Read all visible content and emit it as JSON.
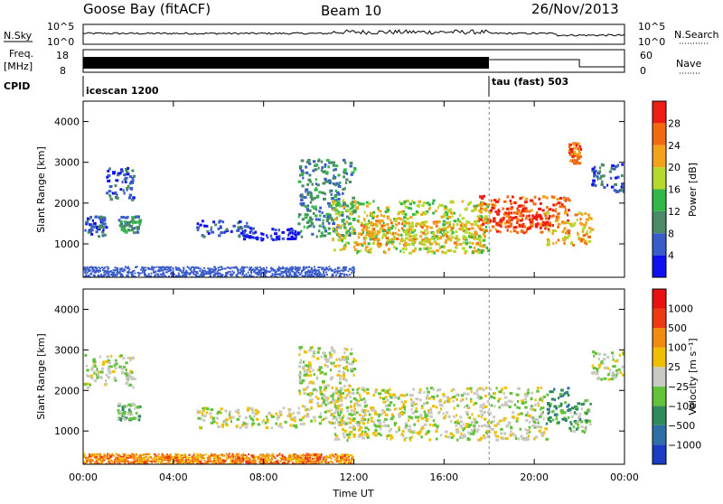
{
  "header": {
    "station": "Goose Bay (fitACF)",
    "beam": "Beam 10",
    "date": "26/Nov/2013"
  },
  "noise_panel": {
    "left_label": "N.Sky",
    "left_ticks": [
      "10^5",
      "10^0"
    ],
    "right_label": "N.Search",
    "right_ticks": [
      "10^5",
      "10^0"
    ]
  },
  "freq_panel": {
    "left_label_top": "Freq.",
    "left_label_bottom": "[MHz]",
    "left_ticks": [
      "18",
      "8"
    ],
    "right_label": "Nave",
    "right_ticks": [
      "60",
      "0"
    ]
  },
  "cpid_panel": {
    "label": "CPID",
    "programs": [
      {
        "name": "icescan 1200",
        "start_hour": 0
      },
      {
        "name": "tau (fast) 503",
        "start_hour": 18
      }
    ]
  },
  "chart_data": [
    {
      "type": "heatmap",
      "title": "",
      "xlabel": "Time UT",
      "ylabel": "Slant Range [km]",
      "xlim_hours": [
        0,
        24
      ],
      "ylim_km": [
        180,
        4500
      ],
      "x_ticks": [
        "00:00",
        "04:00",
        "08:00",
        "12:00",
        "16:00",
        "20:00",
        "00:00"
      ],
      "y_ticks": [
        "1000",
        "2000",
        "3000",
        "4000"
      ],
      "colorbar": {
        "label": "Power [dB]",
        "ticks": [
          "4",
          "8",
          "12",
          "16",
          "20",
          "24",
          "28"
        ],
        "colors": [
          "#1010ee",
          "#3a5cc8",
          "#4a8a66",
          "#33b74a",
          "#b6d92e",
          "#f2a31b",
          "#f26a10",
          "#ee1c12"
        ]
      },
      "scatter_regions": [
        {
          "t0": 1.0,
          "t1": 2.2,
          "r0": 2100,
          "r1": 2900,
          "level": 1
        },
        {
          "t0": 0.0,
          "t1": 1.0,
          "r0": 1200,
          "r1": 1700,
          "level": 1
        },
        {
          "t0": 1.5,
          "t1": 2.5,
          "r0": 1300,
          "r1": 1700,
          "level": 2
        },
        {
          "t0": 5.0,
          "t1": 7.5,
          "r0": 1200,
          "r1": 1600,
          "level": 1
        },
        {
          "t0": 7.0,
          "t1": 9.5,
          "r0": 1100,
          "r1": 1400,
          "level": 0
        },
        {
          "t0": 9.5,
          "t1": 12.0,
          "r0": 1200,
          "r1": 3100,
          "level": 2
        },
        {
          "t0": 11.0,
          "t1": 18.0,
          "r0": 800,
          "r1": 2100,
          "level": 4
        },
        {
          "t0": 12.0,
          "t1": 17.5,
          "r0": 1000,
          "r1": 1600,
          "level": 5
        },
        {
          "t0": 17.5,
          "t1": 21.5,
          "r0": 1300,
          "r1": 2200,
          "level": 6
        },
        {
          "t0": 18.0,
          "t1": 20.5,
          "r0": 1400,
          "r1": 1900,
          "level": 7
        },
        {
          "t0": 20.5,
          "t1": 22.5,
          "r0": 1000,
          "r1": 1800,
          "level": 5
        },
        {
          "t0": 21.5,
          "t1": 22.0,
          "r0": 3000,
          "r1": 3500,
          "level": 6
        },
        {
          "t0": 22.5,
          "t1": 24.0,
          "r0": 2300,
          "r1": 3000,
          "level": 1
        }
      ]
    },
    {
      "type": "heatmap",
      "title": "",
      "xlabel": "Time UT",
      "ylabel": "Slant Range [km]",
      "xlim_hours": [
        0,
        24
      ],
      "ylim_km": [
        180,
        4500
      ],
      "x_ticks": [
        "00:00",
        "04:00",
        "08:00",
        "12:00",
        "16:00",
        "20:00",
        "00:00"
      ],
      "y_ticks": [
        "1000",
        "2000",
        "3000",
        "4000"
      ],
      "colorbar": {
        "label": "Velocity [m s⁻¹]",
        "ticks": [
          "1000",
          "500",
          "100",
          "25",
          "−25",
          "−100",
          "−500",
          "−1000"
        ],
        "colors": [
          "#1d3cc4",
          "#2f6fa8",
          "#2e8a5a",
          "#62c23a",
          "#c9c9c3",
          "#f0c000",
          "#f08a10",
          "#ee3a14",
          "#e81010"
        ]
      },
      "scatter_regions": [
        {
          "t0": 0.0,
          "t1": 2.2,
          "r0": 2100,
          "r1": 2900,
          "level": 4
        },
        {
          "t0": 1.5,
          "t1": 2.5,
          "r0": 1300,
          "r1": 1700,
          "level": 3
        },
        {
          "t0": 5.0,
          "t1": 9.5,
          "r0": 1100,
          "r1": 1600,
          "level": 4
        },
        {
          "t0": 9.5,
          "t1": 12.0,
          "r0": 1200,
          "r1": 3100,
          "level": 4
        },
        {
          "t0": 11.0,
          "t1": 20.5,
          "r0": 800,
          "r1": 2100,
          "level": 4
        },
        {
          "t0": 20.5,
          "t1": 21.5,
          "r0": 1200,
          "r1": 2100,
          "level": 2
        },
        {
          "t0": 21.5,
          "t1": 22.5,
          "r0": 1000,
          "r1": 1800,
          "level": 3
        },
        {
          "t0": 22.5,
          "t1": 24.0,
          "r0": 2300,
          "r1": 3000,
          "level": 4
        },
        {
          "t0": 0.0,
          "t1": 12.0,
          "r0": 200,
          "r1": 450,
          "level": 6
        }
      ]
    }
  ]
}
